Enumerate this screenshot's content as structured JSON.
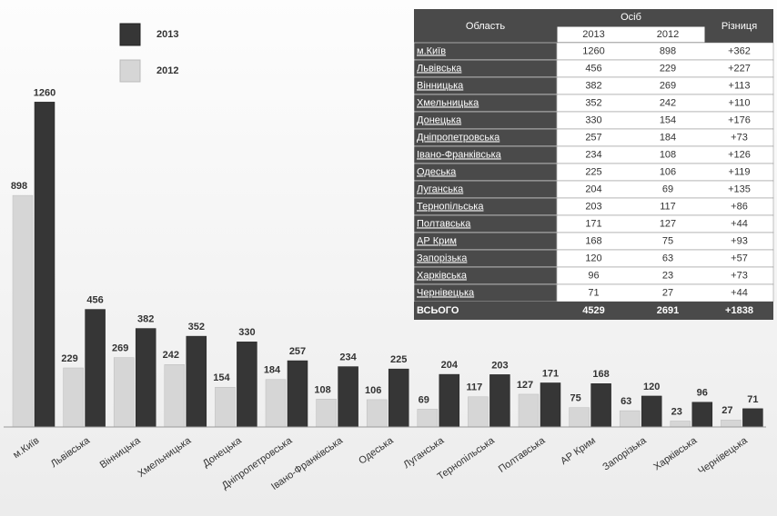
{
  "chart_data": {
    "type": "bar",
    "categories": [
      "м.Київ",
      "Львівська",
      "Вінницька",
      "Хмельницька",
      "Донецька",
      "Дніпропетровська",
      "Івано-Франківська",
      "Одеська",
      "Луганська",
      "Тернопільська",
      "Полтавська",
      "АР Крим",
      "Запорізька",
      "Харківська",
      "Чернівецька"
    ],
    "series": [
      {
        "name": "2012",
        "color": "#d6d6d6",
        "values": [
          898,
          229,
          269,
          242,
          154,
          184,
          108,
          106,
          69,
          117,
          127,
          75,
          63,
          23,
          27
        ]
      },
      {
        "name": "2013",
        "color": "#363636",
        "values": [
          1260,
          456,
          382,
          352,
          330,
          257,
          234,
          225,
          204,
          203,
          171,
          168,
          120,
          96,
          71
        ]
      }
    ],
    "ylim": [
      0,
      1300
    ],
    "legend": "top-left"
  },
  "table": {
    "header": {
      "region": "Область",
      "people": "Осіб",
      "years": [
        "2013",
        "2012"
      ],
      "diff": "Різниця"
    },
    "rows": [
      [
        "м.Київ",
        "1260",
        "898",
        "+362"
      ],
      [
        "Львівська",
        "456",
        "229",
        "+227"
      ],
      [
        "Вінницька",
        "382",
        "269",
        "+113"
      ],
      [
        "Хмельницька",
        "352",
        "242",
        "+110"
      ],
      [
        "Донецька",
        "330",
        "154",
        "+176"
      ],
      [
        "Дніпропетровська",
        "257",
        "184",
        "+73"
      ],
      [
        "Івано-Франківська",
        "234",
        "108",
        "+126"
      ],
      [
        "Одеська",
        "225",
        "106",
        "+119"
      ],
      [
        "Луганська",
        "204",
        "69",
        "+135"
      ],
      [
        "Тернопільська",
        "203",
        "117",
        "+86"
      ],
      [
        "Полтавська",
        "171",
        "127",
        "+44"
      ],
      [
        "АР Крим",
        "168",
        "75",
        "+93"
      ],
      [
        "Запорізька",
        "120",
        "63",
        "+57"
      ],
      [
        "Харківська",
        "96",
        "23",
        "+73"
      ],
      [
        "Чернівецька",
        "71",
        "27",
        "+44"
      ]
    ],
    "total": [
      "ВСЬОГО",
      "4529",
      "2691",
      "+1838"
    ]
  }
}
